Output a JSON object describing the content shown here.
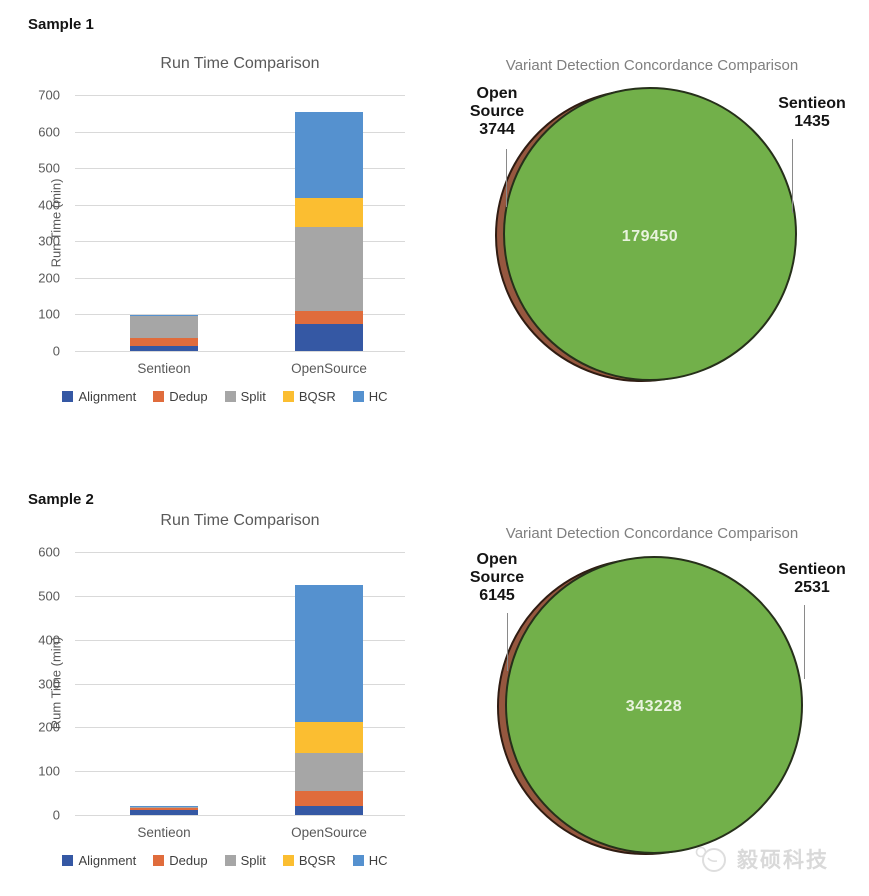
{
  "chart_data": [
    {
      "id": "sample1-runtime",
      "sample_label": "Sample 1",
      "type": "bar",
      "stacked": true,
      "title": "Run Time Comparison",
      "xlabel": "",
      "ylabel": "Run Time (min)",
      "ylim": [
        0,
        700
      ],
      "ytick_step": 100,
      "grid": true,
      "legend_position": "bottom",
      "categories": [
        "Sentieon",
        "OpenSource"
      ],
      "series": [
        {
          "name": "Alignment",
          "color": "#3558a4",
          "values": [
            14,
            75
          ]
        },
        {
          "name": "Dedup",
          "color": "#e06c3c",
          "values": [
            21,
            35
          ]
        },
        {
          "name": "Split",
          "color": "#a6a6a6",
          "values": [
            60,
            228
          ]
        },
        {
          "name": "BQSR",
          "color": "#fbbe31",
          "values": [
            2,
            80
          ]
        },
        {
          "name": "HC",
          "color": "#5591cf",
          "values": [
            1,
            235
          ]
        }
      ]
    },
    {
      "id": "sample1-venn",
      "sample_label": "Sample 1",
      "type": "venn",
      "title": "Variant Detection Concordance Comparison",
      "sets": [
        {
          "label": "Open Source",
          "unique": 3744
        },
        {
          "label": "Sentieon",
          "unique": 1435
        }
      ],
      "overlap": 179450,
      "colors": {
        "overlap_fill": "#72b04a",
        "overlap_outline": "#26301a",
        "left_fill": "#96573f",
        "left_outline": "#301c12",
        "value_text": "#e9f3de"
      }
    },
    {
      "id": "sample2-runtime",
      "sample_label": "Sample 2",
      "type": "bar",
      "stacked": true,
      "title": "Run Time Comparison",
      "xlabel": "",
      "ylabel": "Rum Time (min)",
      "ylim": [
        0,
        600
      ],
      "ytick_step": 100,
      "grid": true,
      "legend_position": "bottom",
      "categories": [
        "Sentieon",
        "OpenSource"
      ],
      "series": [
        {
          "name": "Alignment",
          "color": "#3558a4",
          "values": [
            12,
            20
          ]
        },
        {
          "name": "Dedup",
          "color": "#e06c3c",
          "values": [
            3,
            34
          ]
        },
        {
          "name": "Split",
          "color": "#a6a6a6",
          "values": [
            3,
            88
          ]
        },
        {
          "name": "BQSR",
          "color": "#fbbe31",
          "values": [
            1,
            70
          ]
        },
        {
          "name": "HC",
          "color": "#5591cf",
          "values": [
            1,
            313
          ]
        }
      ]
    },
    {
      "id": "sample2-venn",
      "sample_label": "Sample 2",
      "type": "venn",
      "title": "Variant Detection Concordance Comparison",
      "sets": [
        {
          "label": "Open Source",
          "unique": 6145
        },
        {
          "label": "Sentieon",
          "unique": 2531
        }
      ],
      "overlap": 343228,
      "colors": {
        "overlap_fill": "#72b04a",
        "overlap_outline": "#26301a",
        "left_fill": "#96573f",
        "left_outline": "#301c12",
        "value_text": "#e9f3de"
      }
    }
  ],
  "watermark": {
    "text": "毅硕科技"
  }
}
